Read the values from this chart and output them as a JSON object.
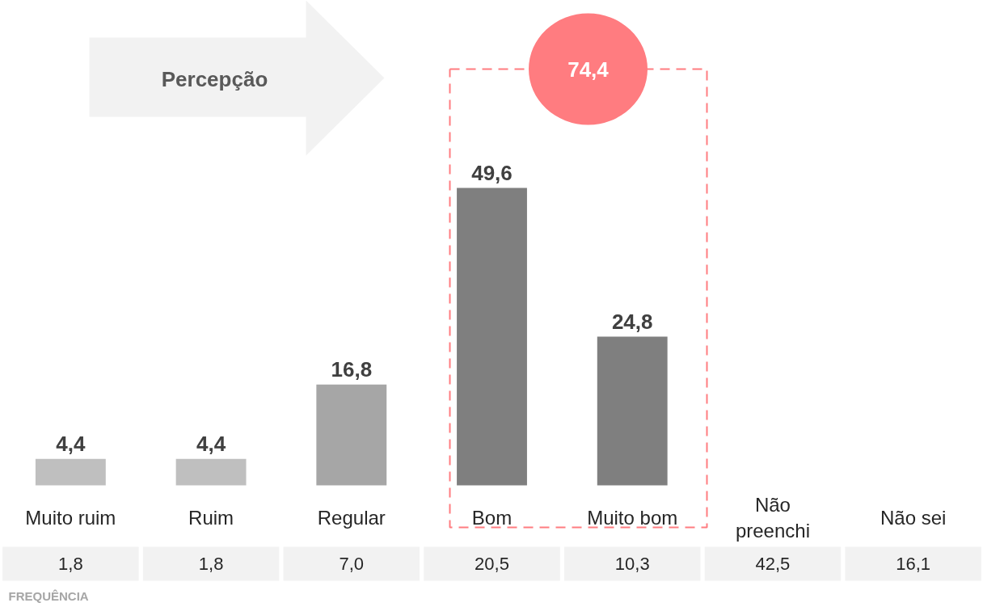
{
  "chart_data": {
    "type": "bar",
    "categories": [
      "Muito ruim",
      "Ruim",
      "Regular",
      "Bom",
      "Muito bom",
      "Não\npreenchi",
      "Não sei"
    ],
    "values": [
      4.4,
      4.4,
      16.8,
      49.6,
      24.8,
      null,
      null
    ],
    "colors": [
      "#bfbfbf",
      "#bfbfbf",
      "#a6a6a6",
      "#7f7f7f",
      "#7f7f7f",
      "#7f7f7f",
      "#7f7f7f"
    ],
    "value_labels": [
      "4,4",
      "4,4",
      "16,8",
      "49,6",
      "24,8",
      null,
      null
    ],
    "grid": false,
    "annotations": [
      {
        "text": "Percepção"
      },
      {
        "text": "74,4"
      },
      "1,8",
      "1,8",
      "7,0",
      "20,5",
      "10,3",
      "42,5",
      "16,1",
      "FREQUÊNCIA"
    ]
  }
}
